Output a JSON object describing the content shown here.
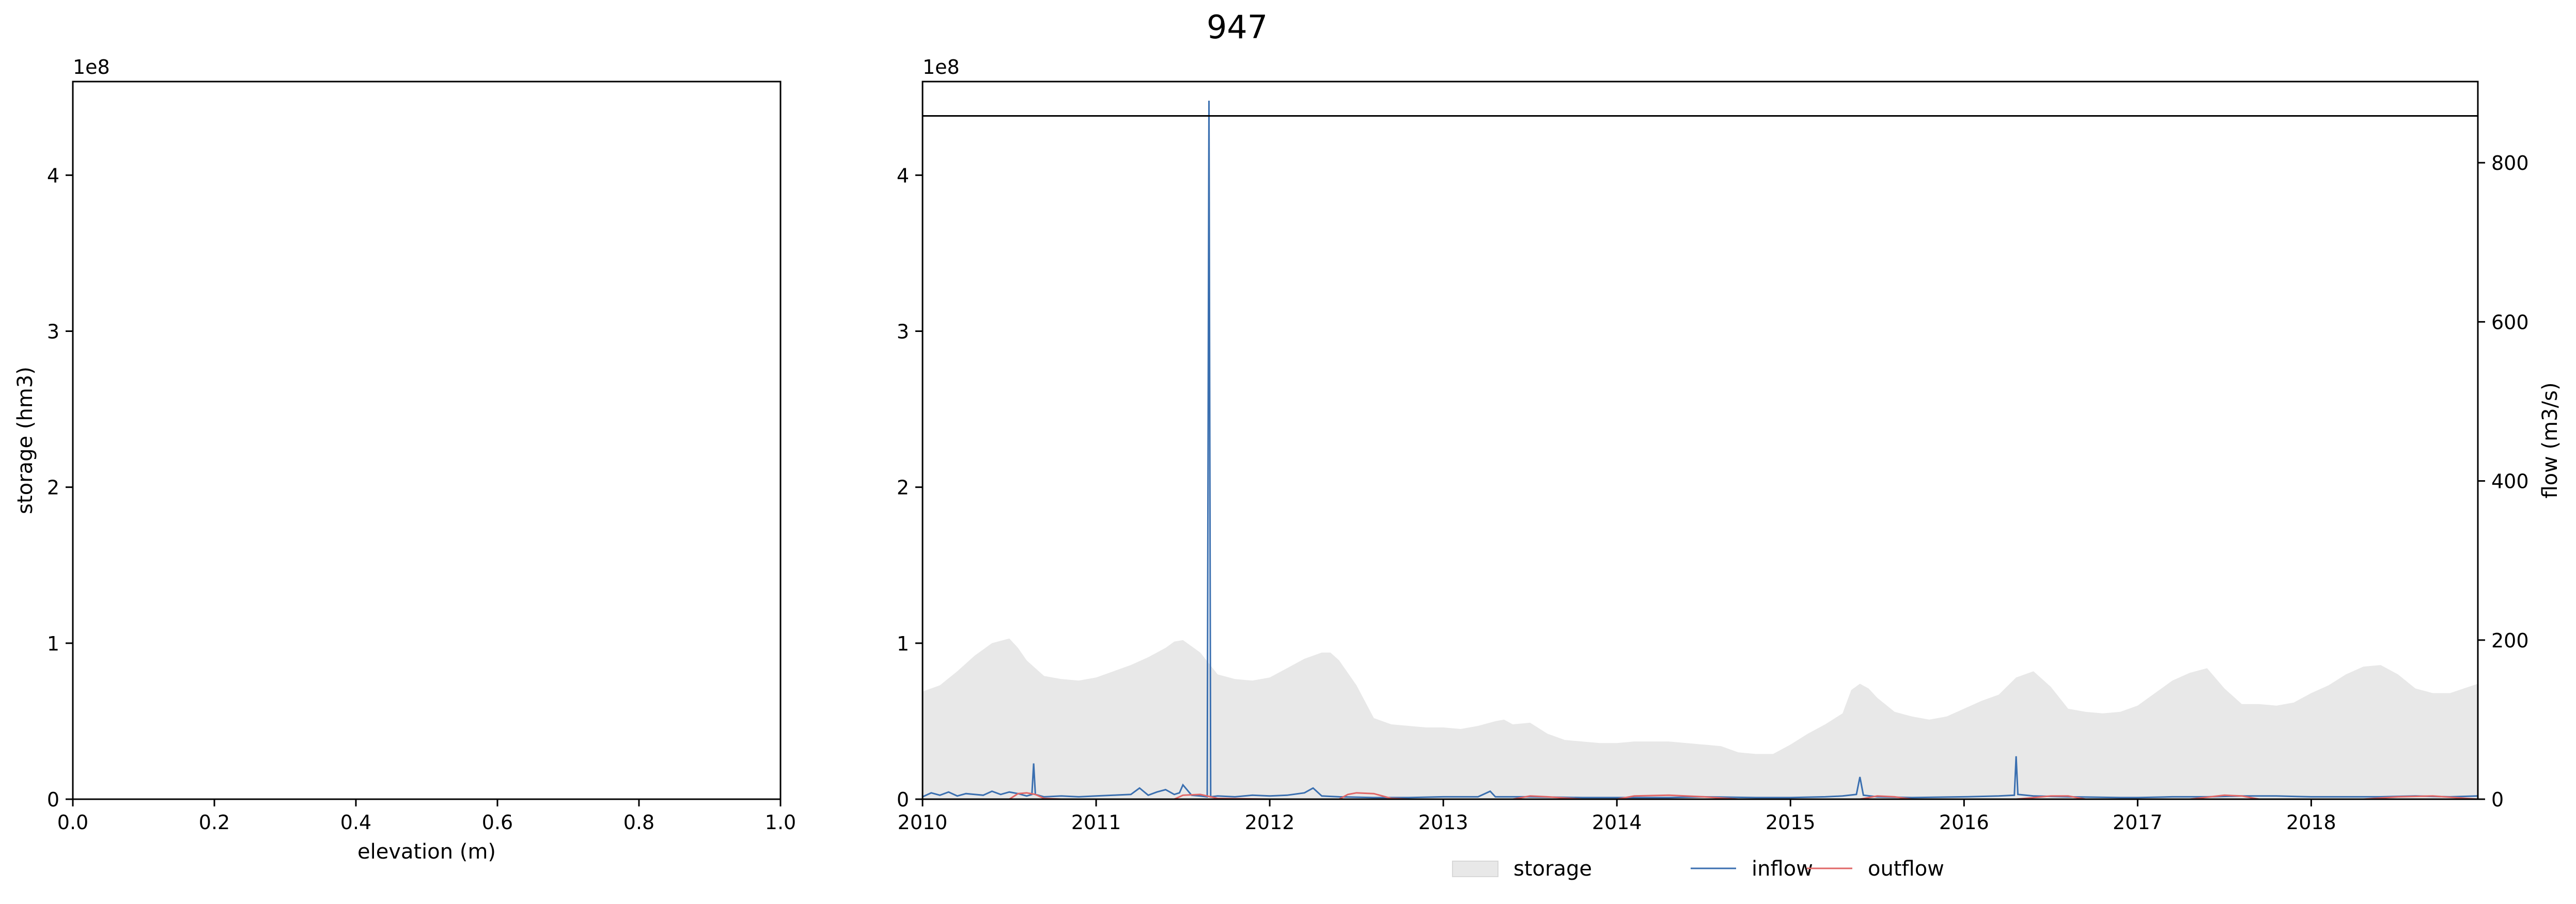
{
  "figure": {
    "title": "947"
  },
  "chart_data": [
    {
      "type": "line",
      "xlabel": "elevation (m)",
      "ylabel": "storage (hm3)",
      "xlim": [
        0.0,
        1.0
      ],
      "ylim": [
        0,
        4.6
      ],
      "y_offset_label": "1e8",
      "x_ticks": [
        0.0,
        0.2,
        0.4,
        0.6,
        0.8,
        1.0
      ],
      "x_tick_labels": [
        "0.0",
        "0.2",
        "0.4",
        "0.6",
        "0.8",
        "1.0"
      ],
      "y_ticks": [
        0,
        1,
        2,
        3,
        4
      ],
      "y_tick_labels": [
        "0",
        "1",
        "2",
        "3",
        "4"
      ],
      "grid": false,
      "series": []
    },
    {
      "type": "area",
      "ylabel_right": "flow (m3/s)",
      "xlim": [
        2010.0,
        2018.96
      ],
      "ylim_left": [
        0,
        4.6
      ],
      "ylim_right": [
        0,
        902
      ],
      "y_offset_label": "1e8",
      "x_ticks": [
        2010,
        2011,
        2012,
        2013,
        2014,
        2015,
        2016,
        2017,
        2018
      ],
      "x_tick_labels": [
        "2010",
        "2011",
        "2012",
        "2013",
        "2014",
        "2015",
        "2016",
        "2017",
        "2018"
      ],
      "y_ticks_left": [
        0,
        1,
        2,
        3,
        4
      ],
      "y_tick_labels_left": [
        "0",
        "1",
        "2",
        "3",
        "4"
      ],
      "y_ticks_right": [
        0,
        200,
        400,
        600,
        800
      ],
      "y_tick_labels_right": [
        "0",
        "200",
        "400",
        "600",
        "800"
      ],
      "capacity_line": 4.38,
      "grid": false,
      "legend": {
        "placement": "bottom-center",
        "entries": [
          "storage",
          "inflow",
          "outflow"
        ]
      },
      "series": [
        {
          "name": "storage",
          "axis": "left",
          "color": "#e8e8e8",
          "x": [
            2010.0,
            2010.1,
            2010.2,
            2010.3,
            2010.4,
            2010.5,
            2010.55,
            2010.6,
            2010.65,
            2010.7,
            2010.8,
            2010.9,
            2011.0,
            2011.1,
            2011.2,
            2011.3,
            2011.4,
            2011.45,
            2011.5,
            2011.6,
            2011.7,
            2011.8,
            2011.9,
            2012.0,
            2012.1,
            2012.2,
            2012.3,
            2012.35,
            2012.4,
            2012.5,
            2012.6,
            2012.7,
            2012.8,
            2012.9,
            2013.0,
            2013.1,
            2013.2,
            2013.3,
            2013.35,
            2013.4,
            2013.5,
            2013.6,
            2013.7,
            2013.8,
            2013.9,
            2014.0,
            2014.1,
            2014.2,
            2014.3,
            2014.4,
            2014.5,
            2014.6,
            2014.7,
            2014.8,
            2014.9,
            2015.0,
            2015.1,
            2015.2,
            2015.3,
            2015.35,
            2015.4,
            2015.45,
            2015.5,
            2015.6,
            2015.7,
            2015.8,
            2015.9,
            2016.0,
            2016.1,
            2016.2,
            2016.3,
            2016.4,
            2016.5,
            2016.6,
            2016.7,
            2016.8,
            2016.9,
            2017.0,
            2017.1,
            2017.2,
            2017.3,
            2017.4,
            2017.5,
            2017.6,
            2017.7,
            2017.8,
            2017.9,
            2018.0,
            2018.1,
            2018.2,
            2018.3,
            2018.4,
            2018.5,
            2018.6,
            2018.7,
            2018.8,
            2018.96
          ],
          "values": [
            0.69,
            0.73,
            0.82,
            0.92,
            1.0,
            1.03,
            0.97,
            0.89,
            0.84,
            0.79,
            0.77,
            0.76,
            0.78,
            0.82,
            0.86,
            0.91,
            0.97,
            1.01,
            1.02,
            0.94,
            0.8,
            0.77,
            0.76,
            0.78,
            0.84,
            0.9,
            0.94,
            0.94,
            0.89,
            0.73,
            0.52,
            0.48,
            0.47,
            0.46,
            0.46,
            0.45,
            0.47,
            0.5,
            0.51,
            0.48,
            0.49,
            0.42,
            0.38,
            0.37,
            0.36,
            0.36,
            0.37,
            0.37,
            0.37,
            0.36,
            0.35,
            0.34,
            0.3,
            0.29,
            0.29,
            0.35,
            0.42,
            0.48,
            0.55,
            0.7,
            0.74,
            0.71,
            0.65,
            0.56,
            0.53,
            0.51,
            0.53,
            0.58,
            0.63,
            0.67,
            0.78,
            0.82,
            0.72,
            0.58,
            0.56,
            0.55,
            0.56,
            0.6,
            0.68,
            0.76,
            0.81,
            0.84,
            0.71,
            0.61,
            0.61,
            0.6,
            0.62,
            0.68,
            0.73,
            0.8,
            0.85,
            0.86,
            0.8,
            0.71,
            0.68,
            0.68,
            0.74
          ]
        },
        {
          "name": "inflow",
          "axis": "right",
          "color": "#3a6fb0",
          "x": [
            2010.0,
            2010.05,
            2010.1,
            2010.15,
            2010.2,
            2010.25,
            2010.3,
            2010.35,
            2010.4,
            2010.45,
            2010.5,
            2010.55,
            2010.6,
            2010.63,
            2010.64,
            2010.65,
            2010.7,
            2010.8,
            2010.9,
            2011.0,
            2011.1,
            2011.2,
            2011.25,
            2011.3,
            2011.35,
            2011.4,
            2011.45,
            2011.48,
            2011.5,
            2011.55,
            2011.6,
            2011.64,
            2011.65,
            2011.66,
            2011.7,
            2011.8,
            2011.9,
            2012.0,
            2012.1,
            2012.2,
            2012.25,
            2012.3,
            2012.4,
            2012.6,
            2012.8,
            2013.0,
            2013.2,
            2013.27,
            2013.3,
            2013.5,
            2013.8,
            2014.0,
            2014.3,
            2014.5,
            2014.8,
            2015.0,
            2015.2,
            2015.3,
            2015.38,
            2015.4,
            2015.42,
            2015.5,
            2015.7,
            2016.0,
            2016.2,
            2016.29,
            2016.3,
            2016.31,
            2016.4,
            2016.6,
            2016.9,
            2017.0,
            2017.2,
            2017.4,
            2017.6,
            2017.8,
            2018.0,
            2018.2,
            2018.4,
            2018.6,
            2018.8,
            2018.96
          ],
          "values": [
            3,
            8,
            5,
            9,
            4,
            7,
            6,
            5,
            10,
            6,
            9,
            7,
            4,
            6,
            45,
            6,
            3,
            4,
            3,
            4,
            5,
            6,
            14,
            5,
            9,
            12,
            6,
            8,
            18,
            5,
            4,
            3,
            878,
            3,
            4,
            3,
            5,
            4,
            5,
            8,
            14,
            4,
            3,
            2,
            2,
            3,
            3,
            10,
            3,
            3,
            2,
            2,
            2,
            3,
            2,
            2,
            3,
            4,
            6,
            28,
            5,
            3,
            2,
            3,
            4,
            5,
            54,
            6,
            4,
            3,
            2,
            2,
            3,
            3,
            4,
            4,
            3,
            3,
            3,
            4,
            3,
            4
          ]
        },
        {
          "name": "outflow",
          "axis": "right",
          "color": "#e06666",
          "x": [
            2010.0,
            2010.5,
            2010.55,
            2010.6,
            2010.65,
            2010.7,
            2010.8,
            2011.0,
            2011.45,
            2011.5,
            2011.6,
            2011.7,
            2012.0,
            2012.4,
            2012.45,
            2012.5,
            2012.6,
            2012.7,
            2012.8,
            2013.0,
            2013.4,
            2013.5,
            2013.6,
            2013.8,
            2014.0,
            2014.1,
            2014.3,
            2014.5,
            2014.7,
            2015.0,
            2015.4,
            2015.5,
            2015.6,
            2015.7,
            2016.0,
            2016.3,
            2016.5,
            2016.6,
            2016.7,
            2017.0,
            2017.3,
            2017.5,
            2017.6,
            2017.7,
            2018.0,
            2018.3,
            2018.5,
            2018.7,
            2018.96
          ],
          "values": [
            0,
            0,
            7,
            8,
            6,
            1,
            0,
            0,
            0,
            5,
            6,
            1,
            0,
            0,
            6,
            8,
            7,
            1,
            0,
            0,
            0,
            4,
            3,
            0,
            0,
            4,
            5,
            3,
            0,
            0,
            0,
            4,
            3,
            0,
            0,
            0,
            4,
            4,
            0,
            0,
            0,
            5,
            4,
            0,
            0,
            0,
            3,
            4,
            0
          ]
        }
      ]
    }
  ]
}
